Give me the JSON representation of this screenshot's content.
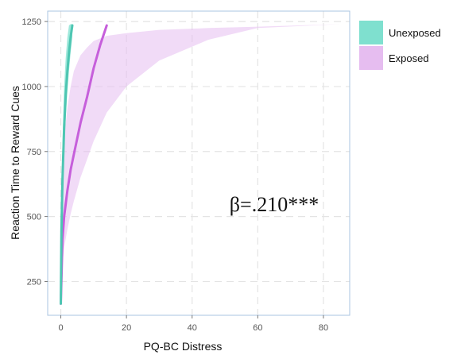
{
  "chart_data": {
    "type": "line",
    "title": "",
    "xlabel": "PQ-BC Distress",
    "ylabel": "Reaction Time to Reward Cues",
    "xlim": [
      -4,
      88
    ],
    "ylim": [
      120,
      1290
    ],
    "x_ticks": [
      0,
      20,
      40,
      60,
      80
    ],
    "x_tick_labels": [
      "0",
      "20",
      "40",
      "60",
      "80"
    ],
    "y_ticks": [
      250,
      500,
      750,
      1000,
      1250
    ],
    "y_tick_labels": [
      "250",
      "500",
      "750",
      "1000",
      "1250"
    ],
    "grid": true,
    "legend_position": "right",
    "annotation": "β=.210***",
    "series": [
      {
        "name": "Unexposed",
        "line_color": "#4ec6b2",
        "fill_color": "#7fe0cf",
        "x": [
          0,
          0.2,
          0.5,
          1,
          1.5,
          2,
          2.5,
          3,
          3.5
        ],
        "y": [
          165,
          440,
          640,
          840,
          970,
          1060,
          1130,
          1190,
          1235
        ],
        "ci_upper": [
          200,
          520,
          790,
          1000,
          1110,
          1190,
          1235,
          1240,
          1240
        ],
        "ci_lower": [
          150,
          380,
          560,
          740,
          880,
          980,
          1060,
          1130,
          1190
        ]
      },
      {
        "name": "Exposed",
        "line_color": "#c65fdb",
        "fill_color": "#e6bdf0",
        "x": [
          0,
          0.5,
          1,
          2,
          3,
          4,
          6,
          8,
          10,
          12,
          14
        ],
        "y": [
          165,
          410,
          500,
          600,
          680,
          740,
          860,
          960,
          1070,
          1160,
          1235
        ],
        "ci_upper": [
          230,
          600,
          800,
          920,
          1000,
          1060,
          1120,
          1150,
          1175,
          1195,
          1205,
          1218,
          1225,
          1230,
          1240
        ],
        "ci_upper_x": [
          0,
          0.5,
          1,
          2,
          3,
          4,
          6,
          8,
          10,
          14,
          20,
          30,
          45,
          60,
          85
        ],
        "ci_lower": [
          150,
          320,
          380,
          450,
          510,
          560,
          650,
          720,
          790,
          900,
          1000,
          1100,
          1180,
          1225,
          1240
        ],
        "ci_lower_x": [
          0,
          0.5,
          1,
          2,
          3,
          4,
          6,
          8,
          10,
          14,
          20,
          30,
          45,
          60,
          85
        ]
      }
    ]
  }
}
